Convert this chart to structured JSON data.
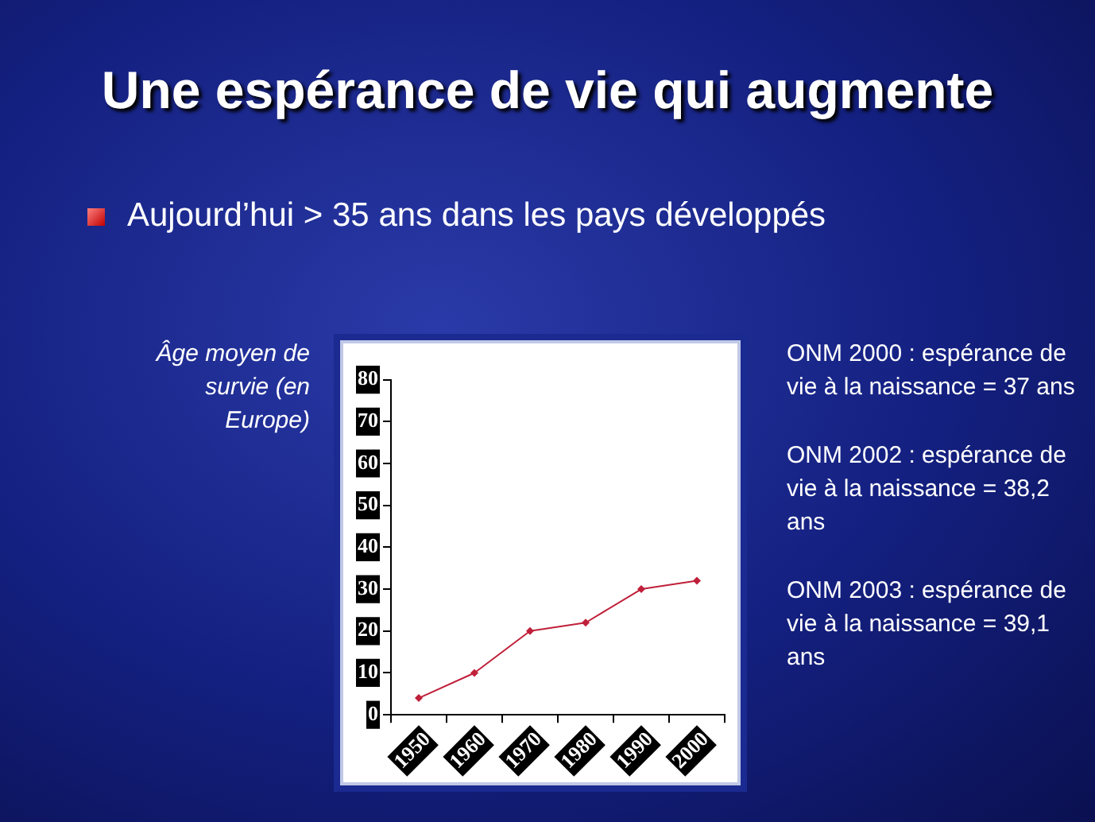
{
  "chart_data": {
    "type": "line",
    "title": "Une espérance de vie qui augmente",
    "subtitle": "Aujourd’hui > 35 ans dans les pays développés",
    "ylabel": "Âge moyen de survie (en Europe)",
    "categories": [
      "1950",
      "1960",
      "1970",
      "1980",
      "1990",
      "2000"
    ],
    "series": [
      {
        "color": "#c0203a",
        "values": [
          4,
          10,
          20,
          22,
          30,
          32
        ]
      }
    ],
    "ylim": [
      0,
      80
    ],
    "yticks": [
      0,
      10,
      20,
      30,
      40,
      50,
      60,
      70,
      80
    ],
    "grid": false,
    "legend": false,
    "marker": "diamond",
    "line_style": "solid",
    "annotations": [
      "ONM 2000 : espérance de vie à la naissance = 37 ans",
      "ONM 2002 : espérance de vie à la naissance = 38,2 ans",
      "ONM 2003 : espérance de vie à la naissance = 39,1 ans"
    ]
  }
}
